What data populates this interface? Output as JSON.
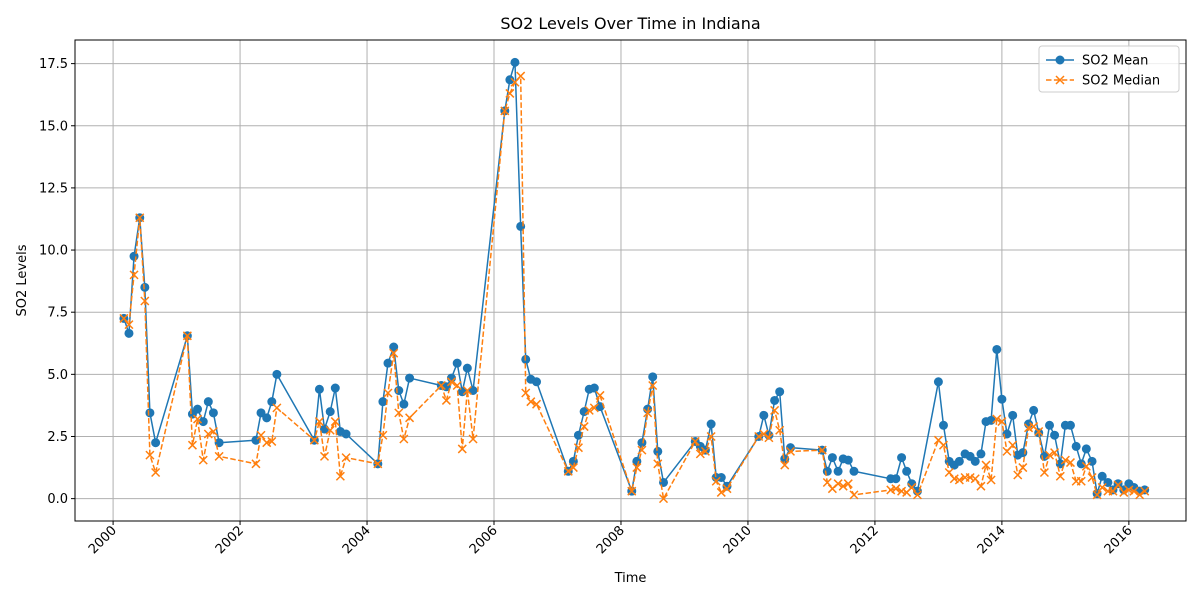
{
  "chart_data": {
    "type": "line",
    "title": "SO2 Levels Over Time in Indiana",
    "xlabel": "Time",
    "ylabel": "SO2 Levels",
    "xlim": [
      1999.4,
      2016.9
    ],
    "ylim": [
      -0.9,
      18.45
    ],
    "x_ticks": [
      2000,
      2002,
      2004,
      2006,
      2008,
      2010,
      2012,
      2014,
      2016
    ],
    "y_ticks": [
      0.0,
      2.5,
      5.0,
      7.5,
      10.0,
      12.5,
      15.0,
      17.5
    ],
    "y_tick_labels": [
      "0.0",
      "2.5",
      "5.0",
      "7.5",
      "10.0",
      "12.5",
      "15.0",
      "17.5"
    ],
    "grid": true,
    "legend_position": "top-right",
    "series": [
      {
        "name": "SO2 Mean",
        "color": "#1f77b4",
        "style": "solid",
        "marker": "circle",
        "points": [
          [
            2000.17,
            7.25
          ],
          [
            2000.25,
            6.65
          ],
          [
            2000.33,
            9.75
          ],
          [
            2000.42,
            11.3
          ],
          [
            2000.5,
            8.5
          ],
          [
            2000.58,
            3.45
          ],
          [
            2000.67,
            2.25
          ],
          [
            2001.17,
            6.55
          ],
          [
            2001.25,
            3.4
          ],
          [
            2001.33,
            3.6
          ],
          [
            2001.42,
            3.1
          ],
          [
            2001.5,
            3.9
          ],
          [
            2001.58,
            3.45
          ],
          [
            2001.67,
            2.25
          ],
          [
            2002.25,
            2.35
          ],
          [
            2002.33,
            3.45
          ],
          [
            2002.42,
            3.25
          ],
          [
            2002.5,
            3.9
          ],
          [
            2002.58,
            5.0
          ],
          [
            2003.17,
            2.35
          ],
          [
            2003.25,
            4.4
          ],
          [
            2003.33,
            2.8
          ],
          [
            2003.42,
            3.5
          ],
          [
            2003.5,
            4.45
          ],
          [
            2003.58,
            2.7
          ],
          [
            2003.67,
            2.6
          ],
          [
            2004.17,
            1.4
          ],
          [
            2004.25,
            3.9
          ],
          [
            2004.33,
            5.45
          ],
          [
            2004.42,
            6.1
          ],
          [
            2004.5,
            4.35
          ],
          [
            2004.58,
            3.8
          ],
          [
            2004.67,
            4.85
          ],
          [
            2005.17,
            4.55
          ],
          [
            2005.25,
            4.5
          ],
          [
            2005.33,
            4.85
          ],
          [
            2005.42,
            5.45
          ],
          [
            2005.5,
            4.3
          ],
          [
            2005.58,
            5.25
          ],
          [
            2005.67,
            4.35
          ],
          [
            2006.17,
            15.6
          ],
          [
            2006.25,
            16.85
          ],
          [
            2006.33,
            17.55
          ],
          [
            2006.42,
            10.95
          ],
          [
            2006.5,
            5.6
          ],
          [
            2006.58,
            4.8
          ],
          [
            2006.67,
            4.7
          ],
          [
            2007.17,
            1.1
          ],
          [
            2007.25,
            1.5
          ],
          [
            2007.33,
            2.55
          ],
          [
            2007.42,
            3.5
          ],
          [
            2007.5,
            4.4
          ],
          [
            2007.58,
            4.45
          ],
          [
            2007.67,
            3.7
          ],
          [
            2008.17,
            0.3
          ],
          [
            2008.25,
            1.5
          ],
          [
            2008.33,
            2.25
          ],
          [
            2008.42,
            3.6
          ],
          [
            2008.5,
            4.9
          ],
          [
            2008.58,
            1.9
          ],
          [
            2008.67,
            0.65
          ],
          [
            2009.17,
            2.3
          ],
          [
            2009.25,
            2.1
          ],
          [
            2009.33,
            1.95
          ],
          [
            2009.42,
            3.0
          ],
          [
            2009.5,
            0.85
          ],
          [
            2009.58,
            0.85
          ],
          [
            2009.67,
            0.5
          ],
          [
            2010.17,
            2.5
          ],
          [
            2010.25,
            3.35
          ],
          [
            2010.33,
            2.55
          ],
          [
            2010.42,
            3.95
          ],
          [
            2010.5,
            4.3
          ],
          [
            2010.58,
            1.6
          ],
          [
            2010.67,
            2.05
          ],
          [
            2011.17,
            1.95
          ],
          [
            2011.25,
            1.1
          ],
          [
            2011.33,
            1.65
          ],
          [
            2011.42,
            1.1
          ],
          [
            2011.5,
            1.6
          ],
          [
            2011.58,
            1.55
          ],
          [
            2011.67,
            1.1
          ],
          [
            2012.25,
            0.8
          ],
          [
            2012.33,
            0.8
          ],
          [
            2012.42,
            1.65
          ],
          [
            2012.5,
            1.1
          ],
          [
            2012.58,
            0.6
          ],
          [
            2012.67,
            0.3
          ],
          [
            2013.0,
            4.7
          ],
          [
            2013.08,
            2.95
          ],
          [
            2013.17,
            1.5
          ],
          [
            2013.25,
            1.35
          ],
          [
            2013.33,
            1.5
          ],
          [
            2013.42,
            1.8
          ],
          [
            2013.5,
            1.7
          ],
          [
            2013.58,
            1.5
          ],
          [
            2013.67,
            1.8
          ],
          [
            2013.75,
            3.1
          ],
          [
            2013.83,
            3.15
          ],
          [
            2013.92,
            6.0
          ],
          [
            2014.0,
            4.0
          ],
          [
            2014.08,
            2.6
          ],
          [
            2014.17,
            3.35
          ],
          [
            2014.25,
            1.75
          ],
          [
            2014.33,
            1.85
          ],
          [
            2014.42,
            3.0
          ],
          [
            2014.5,
            3.55
          ],
          [
            2014.58,
            2.65
          ],
          [
            2014.67,
            1.7
          ],
          [
            2014.75,
            2.95
          ],
          [
            2014.83,
            2.55
          ],
          [
            2014.92,
            1.4
          ],
          [
            2015.0,
            2.95
          ],
          [
            2015.08,
            2.95
          ],
          [
            2015.17,
            2.1
          ],
          [
            2015.25,
            1.4
          ],
          [
            2015.33,
            2.0
          ],
          [
            2015.42,
            1.5
          ],
          [
            2015.5,
            0.2
          ],
          [
            2015.58,
            0.9
          ],
          [
            2015.67,
            0.65
          ],
          [
            2015.75,
            0.35
          ],
          [
            2015.83,
            0.6
          ],
          [
            2015.92,
            0.35
          ],
          [
            2016.0,
            0.6
          ],
          [
            2016.08,
            0.45
          ],
          [
            2016.17,
            0.3
          ],
          [
            2016.25,
            0.35
          ]
        ]
      },
      {
        "name": "SO2 Median",
        "color": "#ff7f0e",
        "style": "dashed",
        "marker": "x",
        "points": [
          [
            2000.17,
            7.25
          ],
          [
            2000.25,
            7.0
          ],
          [
            2000.33,
            9.0
          ],
          [
            2000.42,
            11.3
          ],
          [
            2000.5,
            7.95
          ],
          [
            2000.58,
            1.75
          ],
          [
            2000.67,
            1.05
          ],
          [
            2001.17,
            6.55
          ],
          [
            2001.25,
            2.15
          ],
          [
            2001.33,
            3.2
          ],
          [
            2001.42,
            1.55
          ],
          [
            2001.5,
            2.6
          ],
          [
            2001.58,
            2.7
          ],
          [
            2001.67,
            1.7
          ],
          [
            2002.25,
            1.4
          ],
          [
            2002.33,
            2.55
          ],
          [
            2002.42,
            2.25
          ],
          [
            2002.5,
            2.3
          ],
          [
            2002.58,
            3.65
          ],
          [
            2003.17,
            2.35
          ],
          [
            2003.25,
            3.1
          ],
          [
            2003.33,
            1.7
          ],
          [
            2003.42,
            2.75
          ],
          [
            2003.5,
            3.1
          ],
          [
            2003.58,
            0.9
          ],
          [
            2003.67,
            1.65
          ],
          [
            2004.17,
            1.4
          ],
          [
            2004.25,
            2.55
          ],
          [
            2004.33,
            4.25
          ],
          [
            2004.42,
            5.85
          ],
          [
            2004.5,
            3.45
          ],
          [
            2004.58,
            2.4
          ],
          [
            2004.67,
            3.25
          ],
          [
            2005.17,
            4.55
          ],
          [
            2005.25,
            3.95
          ],
          [
            2005.33,
            4.7
          ],
          [
            2005.42,
            4.55
          ],
          [
            2005.5,
            2.0
          ],
          [
            2005.58,
            4.35
          ],
          [
            2005.67,
            2.4
          ],
          [
            2006.17,
            15.6
          ],
          [
            2006.25,
            16.3
          ],
          [
            2006.33,
            16.75
          ],
          [
            2006.42,
            17.0
          ],
          [
            2006.5,
            4.25
          ],
          [
            2006.58,
            3.9
          ],
          [
            2006.67,
            3.8
          ],
          [
            2007.17,
            1.1
          ],
          [
            2007.25,
            1.25
          ],
          [
            2007.33,
            2.05
          ],
          [
            2007.42,
            2.9
          ],
          [
            2007.5,
            3.55
          ],
          [
            2007.58,
            3.65
          ],
          [
            2007.67,
            4.15
          ],
          [
            2008.17,
            0.3
          ],
          [
            2008.25,
            1.25
          ],
          [
            2008.33,
            1.95
          ],
          [
            2008.42,
            3.45
          ],
          [
            2008.5,
            4.55
          ],
          [
            2008.58,
            1.4
          ],
          [
            2008.67,
            0.0
          ],
          [
            2009.17,
            2.3
          ],
          [
            2009.25,
            1.8
          ],
          [
            2009.33,
            1.9
          ],
          [
            2009.42,
            2.5
          ],
          [
            2009.5,
            0.7
          ],
          [
            2009.58,
            0.25
          ],
          [
            2009.67,
            0.4
          ],
          [
            2010.17,
            2.5
          ],
          [
            2010.25,
            2.6
          ],
          [
            2010.33,
            2.45
          ],
          [
            2010.42,
            3.55
          ],
          [
            2010.5,
            2.75
          ],
          [
            2010.58,
            1.35
          ],
          [
            2010.67,
            1.9
          ],
          [
            2011.17,
            1.95
          ],
          [
            2011.25,
            0.65
          ],
          [
            2011.33,
            0.4
          ],
          [
            2011.42,
            0.6
          ],
          [
            2011.5,
            0.5
          ],
          [
            2011.58,
            0.6
          ],
          [
            2011.67,
            0.15
          ],
          [
            2012.25,
            0.35
          ],
          [
            2012.33,
            0.4
          ],
          [
            2012.42,
            0.3
          ],
          [
            2012.5,
            0.25
          ],
          [
            2012.58,
            0.45
          ],
          [
            2012.67,
            0.15
          ],
          [
            2013.0,
            2.35
          ],
          [
            2013.08,
            2.15
          ],
          [
            2013.17,
            1.05
          ],
          [
            2013.25,
            0.8
          ],
          [
            2013.33,
            0.75
          ],
          [
            2013.42,
            0.85
          ],
          [
            2013.5,
            0.85
          ],
          [
            2013.58,
            0.8
          ],
          [
            2013.67,
            0.5
          ],
          [
            2013.75,
            1.35
          ],
          [
            2013.83,
            0.75
          ],
          [
            2013.92,
            3.2
          ],
          [
            2014.0,
            3.1
          ],
          [
            2014.08,
            1.9
          ],
          [
            2014.17,
            2.15
          ],
          [
            2014.25,
            0.95
          ],
          [
            2014.33,
            1.25
          ],
          [
            2014.42,
            2.85
          ],
          [
            2014.5,
            2.9
          ],
          [
            2014.58,
            2.7
          ],
          [
            2014.67,
            1.05
          ],
          [
            2014.75,
            1.75
          ],
          [
            2014.83,
            1.85
          ],
          [
            2014.92,
            0.9
          ],
          [
            2015.0,
            1.55
          ],
          [
            2015.08,
            1.45
          ],
          [
            2015.17,
            0.7
          ],
          [
            2015.25,
            0.7
          ],
          [
            2015.33,
            1.3
          ],
          [
            2015.42,
            0.85
          ],
          [
            2015.5,
            0.15
          ],
          [
            2015.58,
            0.45
          ],
          [
            2015.67,
            0.3
          ],
          [
            2015.75,
            0.3
          ],
          [
            2015.83,
            0.55
          ],
          [
            2015.92,
            0.25
          ],
          [
            2016.0,
            0.35
          ],
          [
            2016.08,
            0.3
          ],
          [
            2016.17,
            0.15
          ],
          [
            2016.25,
            0.3
          ]
        ]
      }
    ]
  }
}
